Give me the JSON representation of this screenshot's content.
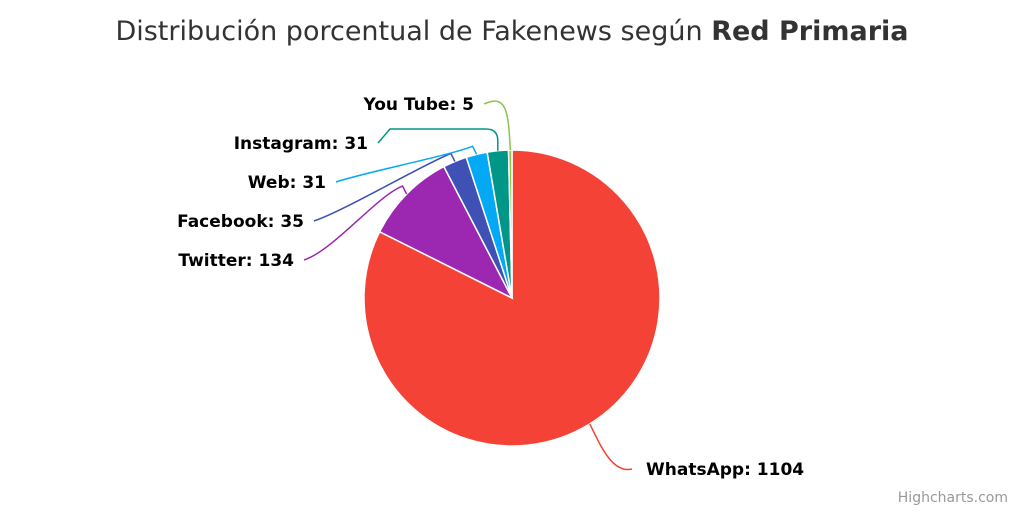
{
  "chart_data": {
    "type": "pie",
    "title": "Distribución porcentual de Fakenews según",
    "title_bold": "Red Primaria",
    "series": [
      {
        "name": "",
        "data": [
          {
            "name": "WhatsApp",
            "y": 1104,
            "color": "#f44336"
          },
          {
            "name": "Twitter",
            "y": 134,
            "color": "#9c27b0"
          },
          {
            "name": "Facebook",
            "y": 35,
            "color": "#3f51b5"
          },
          {
            "name": "Web",
            "y": 31,
            "color": "#03a9f4"
          },
          {
            "name": "Instagram",
            "y": 31,
            "color": "#009688"
          },
          {
            "name": "You Tube",
            "y": 5,
            "color": "#8bc34a"
          }
        ]
      }
    ],
    "data_labels": "name: value",
    "legend": false
  },
  "credits": "Highcharts.com"
}
